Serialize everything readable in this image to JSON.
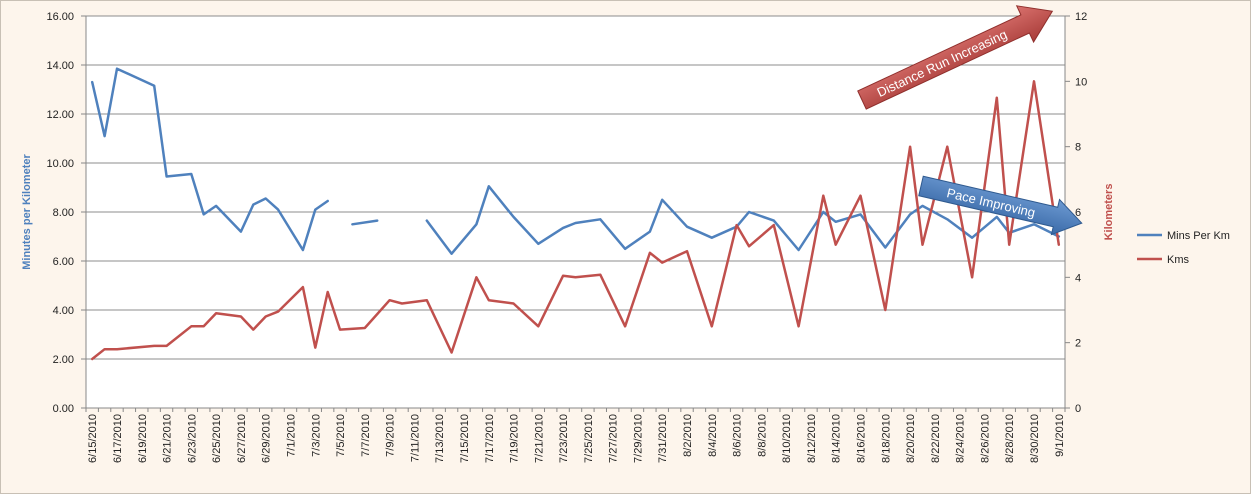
{
  "chart_data": {
    "type": "line",
    "dates": [
      "6/15/2010",
      "6/16/2010",
      "6/17/2010",
      "6/18/2010",
      "6/19/2010",
      "6/20/2010",
      "6/21/2010",
      "6/22/2010",
      "6/23/2010",
      "6/24/2010",
      "6/25/2010",
      "6/26/2010",
      "6/27/2010",
      "6/28/2010",
      "6/29/2010",
      "6/30/2010",
      "7/1/2010",
      "7/2/2010",
      "7/3/2010",
      "7/4/2010",
      "7/5/2010",
      "7/6/2010",
      "7/7/2010",
      "7/8/2010",
      "7/9/2010",
      "7/10/2010",
      "7/11/2010",
      "7/12/2010",
      "7/13/2010",
      "7/14/2010",
      "7/15/2010",
      "7/16/2010",
      "7/17/2010",
      "7/18/2010",
      "7/19/2010",
      "7/20/2010",
      "7/21/2010",
      "7/22/2010",
      "7/23/2010",
      "7/24/2010",
      "7/25/2010",
      "7/26/2010",
      "7/27/2010",
      "7/28/2010",
      "7/29/2010",
      "7/30/2010",
      "7/31/2010",
      "8/1/2010",
      "8/2/2010",
      "8/3/2010",
      "8/4/2010",
      "8/5/2010",
      "8/6/2010",
      "8/7/2010",
      "8/8/2010",
      "8/9/2010",
      "8/10/2010",
      "8/11/2010",
      "8/12/2010",
      "8/13/2010",
      "8/14/2010",
      "8/15/2010",
      "8/16/2010",
      "8/17/2010",
      "8/18/2010",
      "8/19/2010",
      "8/20/2010",
      "8/21/2010",
      "8/22/2010",
      "8/23/2010",
      "8/24/2010",
      "8/25/2010",
      "8/26/2010",
      "8/27/2010",
      "8/28/2010",
      "8/29/2010",
      "8/30/2010",
      "8/31/2010",
      "9/1/2010"
    ],
    "tick_labels": [
      "6/15/2010",
      "6/17/2010",
      "6/19/2010",
      "6/21/2010",
      "6/23/2010",
      "6/25/2010",
      "6/27/2010",
      "6/29/2010",
      "7/1/2010",
      "7/3/2010",
      "7/5/2010",
      "7/7/2010",
      "7/9/2010",
      "7/11/2010",
      "7/13/2010",
      "7/15/2010",
      "7/17/2010",
      "7/19/2010",
      "7/21/2010",
      "7/23/2010",
      "7/25/2010",
      "7/27/2010",
      "7/29/2010",
      "7/31/2010",
      "8/2/2010",
      "8/4/2010",
      "8/6/2010",
      "8/8/2010",
      "8/10/2010",
      "8/12/2010",
      "8/14/2010",
      "8/16/2010",
      "8/18/2010",
      "8/20/2010",
      "8/22/2010",
      "8/24/2010",
      "8/26/2010",
      "8/28/2010",
      "8/30/2010",
      "9/1/2010"
    ],
    "y_left": {
      "label": "Minutes per Kilometer",
      "min": 0,
      "max": 16,
      "step": 2,
      "ticks": [
        "0.00",
        "2.00",
        "4.00",
        "6.00",
        "8.00",
        "10.00",
        "12.00",
        "14.00",
        "16.00"
      ],
      "color": "#4f81bd"
    },
    "y_right": {
      "label": "Kilometers",
      "min": 0,
      "max": 12,
      "step": 2,
      "ticks": [
        "0",
        "2",
        "4",
        "6",
        "8",
        "10",
        "12"
      ],
      "color": "#c0504d"
    },
    "grid": true,
    "legend_position": "right",
    "series": [
      {
        "name": "Mins Per Km",
        "axis": "left",
        "color": "#4f81bd",
        "points": [
          [
            "6/15/2010",
            13.3
          ],
          [
            "6/16/2010",
            11.1
          ],
          [
            "6/17/2010",
            13.85
          ],
          [
            "6/20/2010",
            13.15
          ],
          [
            "6/21/2010",
            9.45
          ],
          [
            "6/23/2010",
            9.55
          ],
          [
            "6/24/2010",
            7.9
          ],
          [
            "6/25/2010",
            8.25
          ],
          [
            "6/27/2010",
            7.2
          ],
          [
            "6/28/2010",
            8.3
          ],
          [
            "6/29/2010",
            8.55
          ],
          [
            "6/30/2010",
            8.1
          ],
          [
            "7/2/2010",
            6.45
          ],
          [
            "7/3/2010",
            8.1
          ],
          [
            "7/4/2010",
            8.45
          ],
          null,
          [
            "7/6/2010",
            7.5
          ],
          [
            "7/8/2010",
            7.65
          ],
          null,
          [
            "7/12/2010",
            7.65
          ],
          [
            "7/14/2010",
            6.3
          ],
          [
            "7/16/2010",
            7.5
          ],
          [
            "7/17/2010",
            9.05
          ],
          [
            "7/19/2010",
            7.8
          ],
          [
            "7/21/2010",
            6.7
          ],
          [
            "7/23/2010",
            7.35
          ],
          [
            "7/24/2010",
            7.55
          ],
          [
            "7/26/2010",
            7.7
          ],
          [
            "7/28/2010",
            6.5
          ],
          [
            "7/30/2010",
            7.2
          ],
          [
            "7/31/2010",
            8.5
          ],
          [
            "8/2/2010",
            7.4
          ],
          [
            "8/4/2010",
            6.95
          ],
          [
            "8/6/2010",
            7.4
          ],
          [
            "8/7/2010",
            8.0
          ],
          [
            "8/9/2010",
            7.65
          ],
          [
            "8/11/2010",
            6.45
          ],
          [
            "8/13/2010",
            8.0
          ],
          [
            "8/14/2010",
            7.6
          ],
          [
            "8/16/2010",
            7.9
          ],
          [
            "8/18/2010",
            6.55
          ],
          [
            "8/20/2010",
            7.9
          ],
          [
            "8/21/2010",
            8.25
          ],
          [
            "8/23/2010",
            7.7
          ],
          [
            "8/25/2010",
            6.95
          ],
          [
            "8/27/2010",
            7.8
          ],
          [
            "8/28/2010",
            7.15
          ],
          [
            "8/30/2010",
            7.5
          ],
          [
            "9/1/2010",
            7.0
          ]
        ]
      },
      {
        "name": "Kms",
        "axis": "right",
        "color": "#c0504d",
        "points": [
          [
            "6/15/2010",
            1.5
          ],
          [
            "6/16/2010",
            1.8
          ],
          [
            "6/17/2010",
            1.8
          ],
          [
            "6/20/2010",
            1.9
          ],
          [
            "6/21/2010",
            1.9
          ],
          [
            "6/23/2010",
            2.5
          ],
          [
            "6/24/2010",
            2.5
          ],
          [
            "6/25/2010",
            2.9
          ],
          [
            "6/27/2010",
            2.8
          ],
          [
            "6/28/2010",
            2.4
          ],
          [
            "6/29/2010",
            2.8
          ],
          [
            "6/30/2010",
            2.95
          ],
          [
            "7/2/2010",
            3.7
          ],
          [
            "7/3/2010",
            1.85
          ],
          [
            "7/4/2010",
            3.55
          ],
          [
            "7/5/2010",
            2.4
          ],
          [
            "7/7/2010",
            2.45
          ],
          [
            "7/9/2010",
            3.3
          ],
          [
            "7/10/2010",
            3.2
          ],
          [
            "7/12/2010",
            3.3
          ],
          [
            "7/14/2010",
            1.7
          ],
          [
            "7/16/2010",
            4.0
          ],
          [
            "7/17/2010",
            3.3
          ],
          [
            "7/19/2010",
            3.2
          ],
          [
            "7/21/2010",
            2.5
          ],
          [
            "7/23/2010",
            4.05
          ],
          [
            "7/24/2010",
            4.0
          ],
          [
            "7/26/2010",
            4.08
          ],
          [
            "7/28/2010",
            2.5
          ],
          [
            "7/30/2010",
            4.75
          ],
          [
            "7/31/2010",
            4.45
          ],
          [
            "8/2/2010",
            4.8
          ],
          [
            "8/4/2010",
            2.5
          ],
          [
            "8/6/2010",
            5.6
          ],
          [
            "8/7/2010",
            4.95
          ],
          [
            "8/9/2010",
            5.6
          ],
          [
            "8/11/2010",
            2.5
          ],
          [
            "8/13/2010",
            6.5
          ],
          [
            "8/14/2010",
            5.0
          ],
          [
            "8/16/2010",
            6.5
          ],
          [
            "8/18/2010",
            3.0
          ],
          [
            "8/20/2010",
            8.0
          ],
          [
            "8/21/2010",
            5.0
          ],
          [
            "8/23/2010",
            8.0
          ],
          [
            "8/25/2010",
            4.0
          ],
          [
            "8/27/2010",
            9.5
          ],
          [
            "8/28/2010",
            5.0
          ],
          [
            "8/30/2010",
            10.0
          ],
          [
            "9/1/2010",
            5.0
          ]
        ]
      }
    ],
    "annotations": [
      {
        "text": "Distance Run Increasing",
        "color": "#c0504d"
      },
      {
        "text": "Pace Improving",
        "color": "#4f81bd"
      }
    ]
  }
}
